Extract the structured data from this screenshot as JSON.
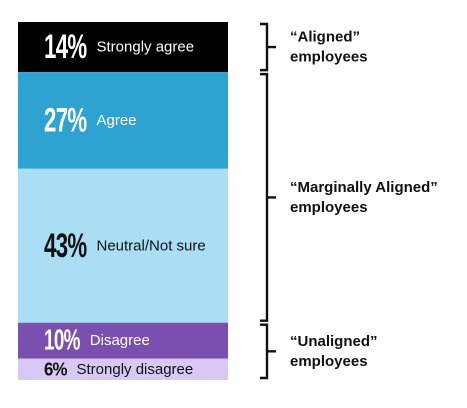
{
  "chart_data": {
    "type": "bar",
    "layout": "stacked-vertical",
    "categories": [
      "Strongly agree",
      "Agree",
      "Neutral/Not sure",
      "Disagree",
      "Strongly disagree"
    ],
    "values": [
      14,
      27,
      43,
      10,
      6
    ],
    "value_labels": [
      "14%",
      "27%",
      "43%",
      "10%",
      "6%"
    ],
    "unit": "%",
    "colors": [
      "#000000",
      "#2ea3d2",
      "#a9def5",
      "#7b4fae",
      "#d9c8f3"
    ],
    "label_colors": [
      "#ffffff",
      "#ffffff",
      "#111111",
      "#ffffff",
      "#111111"
    ],
    "groups": [
      {
        "label_lines": [
          "“Aligned”",
          "employees"
        ],
        "categories": [
          "Strongly agree"
        ]
      },
      {
        "label_lines": [
          "“Marginally Aligned”",
          "employees"
        ],
        "categories": [
          "Agree",
          "Neutral/Not sure"
        ]
      },
      {
        "label_lines": [
          "“Unaligned”",
          "employees"
        ],
        "categories": [
          "Disagree",
          "Strongly disagree"
        ]
      }
    ]
  }
}
